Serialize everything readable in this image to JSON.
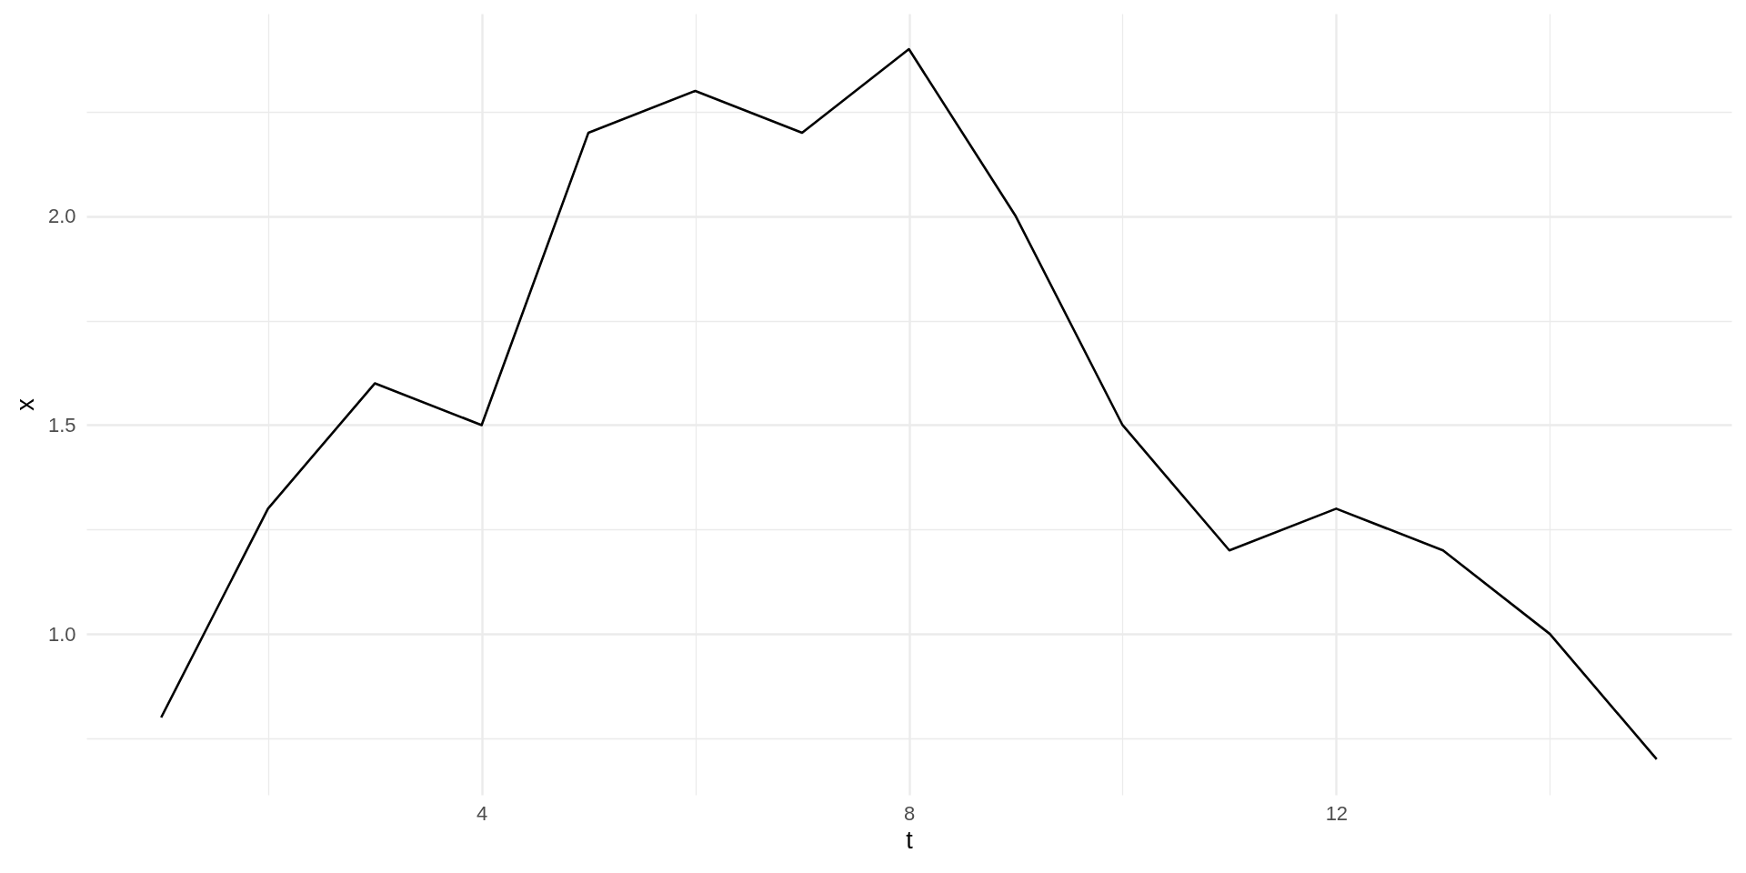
{
  "chart_data": {
    "type": "line",
    "xlabel": "t",
    "ylabel": "x",
    "x": [
      1,
      2,
      3,
      4,
      5,
      6,
      7,
      8,
      9,
      10,
      11,
      12,
      13,
      14,
      15
    ],
    "series": [
      {
        "color": "#000000",
        "values": [
          0.8,
          1.3,
          1.6,
          1.5,
          2.2,
          2.3,
          2.2,
          2.4,
          2.0,
          1.5,
          1.2,
          1.3,
          1.2,
          1.0,
          0.7
        ]
      }
    ],
    "xlim": [
      0.3,
      15.7
    ],
    "ylim": [
      0.615,
      2.485
    ],
    "xticks": [
      {
        "value": 2,
        "label": null
      },
      4,
      {
        "value": 6,
        "label": null
      },
      8,
      {
        "value": 10,
        "label": null
      },
      12,
      {
        "value": 14,
        "label": null
      }
    ],
    "yticks": [
      {
        "value": 0.75,
        "label": null
      },
      {
        "value": 1,
        "label": "1.0"
      },
      {
        "value": 1.25,
        "label": null
      },
      {
        "value": 1.5,
        "label": "1.5"
      },
      {
        "value": 1.75,
        "label": null
      },
      {
        "value": 2,
        "label": "2.0"
      },
      {
        "value": 2.25,
        "label": null
      }
    ],
    "grid": true,
    "line_style": "solid"
  }
}
